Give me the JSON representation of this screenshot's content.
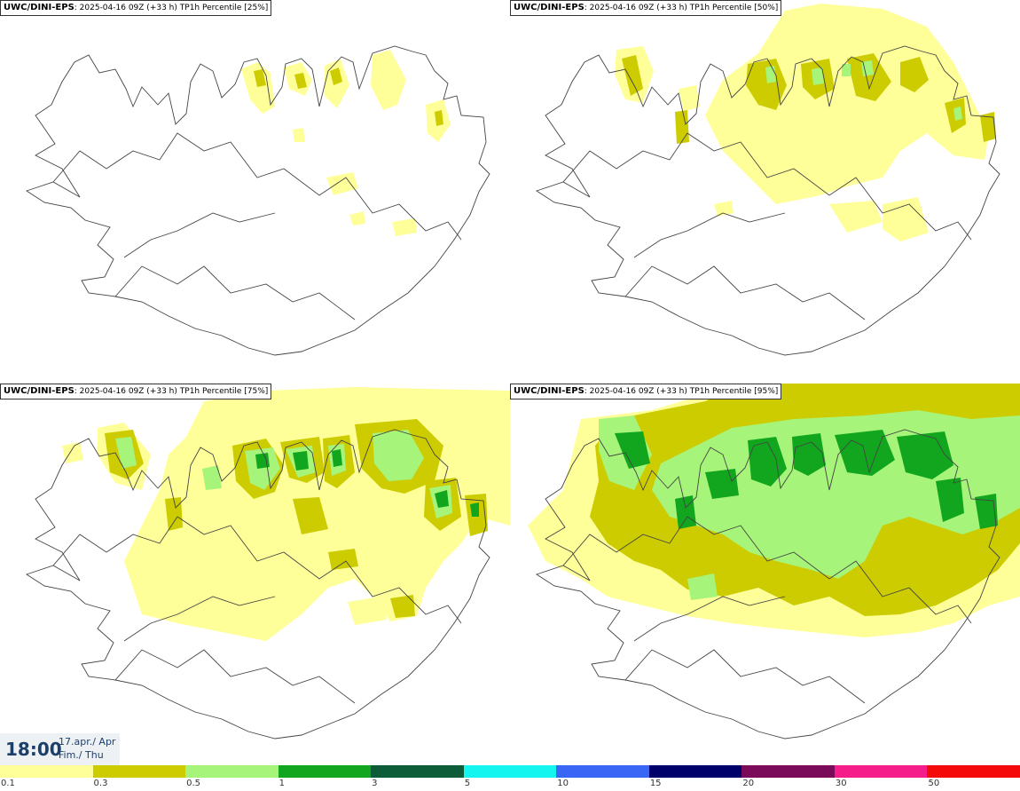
{
  "panels": [
    {
      "model": "UWC/DINI-EPS",
      "run": ": 2025-04-16 09Z (+33 h)",
      "field": "TP1h Percentile [25%]"
    },
    {
      "model": "UWC/DINI-EPS",
      "run": ": 2025-04-16 09Z (+33 h)",
      "field": "TP1h Percentile [50%]"
    },
    {
      "model": "UWC/DINI-EPS",
      "run": ": 2025-04-16 09Z (+33 h)",
      "field": "TP1h Percentile [75%]"
    },
    {
      "model": "UWC/DINI-EPS",
      "run": ": 2025-04-16 09Z (+33 h)",
      "field": "TP1h Percentile [95%]"
    }
  ],
  "valid": {
    "time": "18:00",
    "date_line1": "17.apr./ Apr",
    "date_line2": "Fim./ Thu"
  },
  "legend": {
    "ticks": [
      "0.1",
      "0.3",
      "0.5",
      "1",
      "3",
      "5",
      "10",
      "15",
      "20",
      "30",
      "50"
    ],
    "colors": [
      "#ffff99",
      "#cccc00",
      "#a6f57a",
      "#12a61e",
      "#0c5c3a",
      "#15f5f0",
      "#3a66f5",
      "#00006b",
      "#7a0a5a",
      "#f51d8a",
      "#f50a0a"
    ]
  },
  "colors": {
    "light": "#ffff99",
    "mid": "#cccc00",
    "pale_green": "#a6f57a",
    "green": "#12a61e",
    "coast": "#444444"
  }
}
